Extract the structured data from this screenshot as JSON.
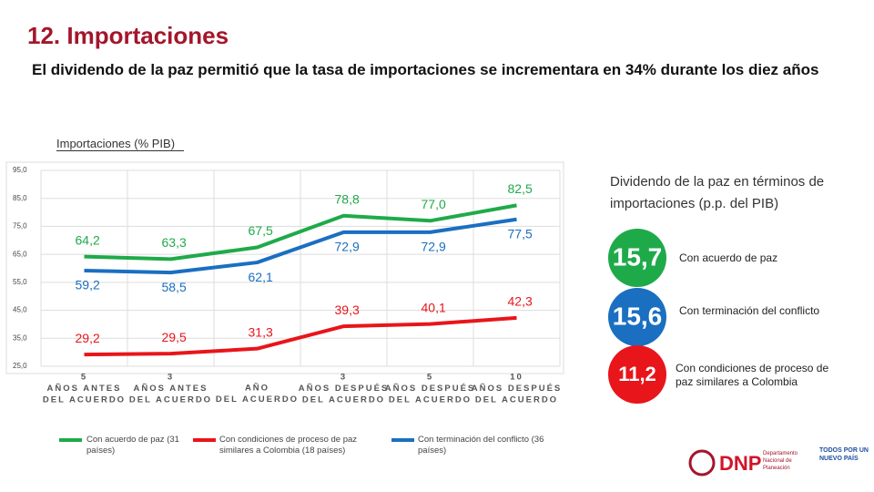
{
  "header": {
    "title": "12. Importaciones",
    "subtitle": "El dividendo de la paz permitió que la tasa de importaciones se incrementara en 34% durante los diez años"
  },
  "chart_data": {
    "type": "line",
    "y_label": "Importaciones (% PIB)",
    "categories": [
      [
        "5",
        "AÑOS ANTES",
        "DEL ACUERDO"
      ],
      [
        "3",
        "AÑOS ANTES",
        "DEL ACUERDO"
      ],
      [
        "AÑO",
        "DEL ACUERDO"
      ],
      [
        "3",
        "AÑOS DESPUÉS",
        "DEL ACUERDO"
      ],
      [
        "5",
        "AÑOS DESPUÉS",
        "DEL ACUERDO"
      ],
      [
        "10",
        "AÑOS DESPUÉS",
        "DEL ACUERDO"
      ]
    ],
    "series": [
      {
        "name": "Con acuerdo de paz (31 países)",
        "color": "#1faa4a",
        "label_pos": "above",
        "values": [
          64.2,
          63.3,
          67.5,
          78.8,
          77.0,
          82.5
        ],
        "value_labels": [
          "64,2",
          "63,3",
          "67,5",
          "78,8",
          "77,0",
          "82,5"
        ]
      },
      {
        "name": "Con condiciones de proceso de paz similares a Colombia (18 países)",
        "color": "#e8151b",
        "label_pos": "above",
        "values": [
          29.2,
          29.5,
          31.3,
          39.3,
          40.1,
          42.3
        ],
        "value_labels": [
          "29,2",
          "29,5",
          "31,3",
          "39,3",
          "40,1",
          "42,3"
        ]
      },
      {
        "name": "Con terminación del conflicto (36 países)",
        "color": "#1a6fc1",
        "label_pos": "below",
        "values": [
          59.2,
          58.5,
          62.1,
          72.9,
          72.9,
          77.5
        ],
        "value_labels": [
          "59,2",
          "58,5",
          "62,1",
          "72,9",
          "72,9",
          "77,5"
        ]
      }
    ],
    "ylim": [
      25,
      95
    ],
    "yticks": [
      {
        "value": 25,
        "label": "25,0"
      },
      {
        "value": 35,
        "label": "35,0"
      },
      {
        "value": 45,
        "label": "45,0"
      },
      {
        "value": 55,
        "label": "55,0"
      },
      {
        "value": 65,
        "label": "65,0"
      },
      {
        "value": 75,
        "label": "75,0"
      },
      {
        "value": 85,
        "label": "85,0"
      },
      {
        "value": 95,
        "label": "95,0"
      }
    ]
  },
  "dividends": {
    "title": "Dividendo de la paz en términos de importaciones (p.p. del PIB)",
    "items": [
      {
        "value": 15.7,
        "label": "15,7",
        "text": "Con acuerdo de paz",
        "color": "#1faa4a"
      },
      {
        "value": 15.6,
        "label": "15,6",
        "text": "Con terminación del conflicto",
        "color": "#1a6fc1"
      },
      {
        "value": 11.2,
        "label": "11,2",
        "text": "Con condiciones de proceso de paz similares a Colombia",
        "color": "#e8151b"
      }
    ]
  },
  "logos": {
    "dnp": "DNP",
    "dnp_name": "Departamento Nacional de Planeación",
    "gov": "TODOS POR UN NUEVO PAÍS"
  }
}
